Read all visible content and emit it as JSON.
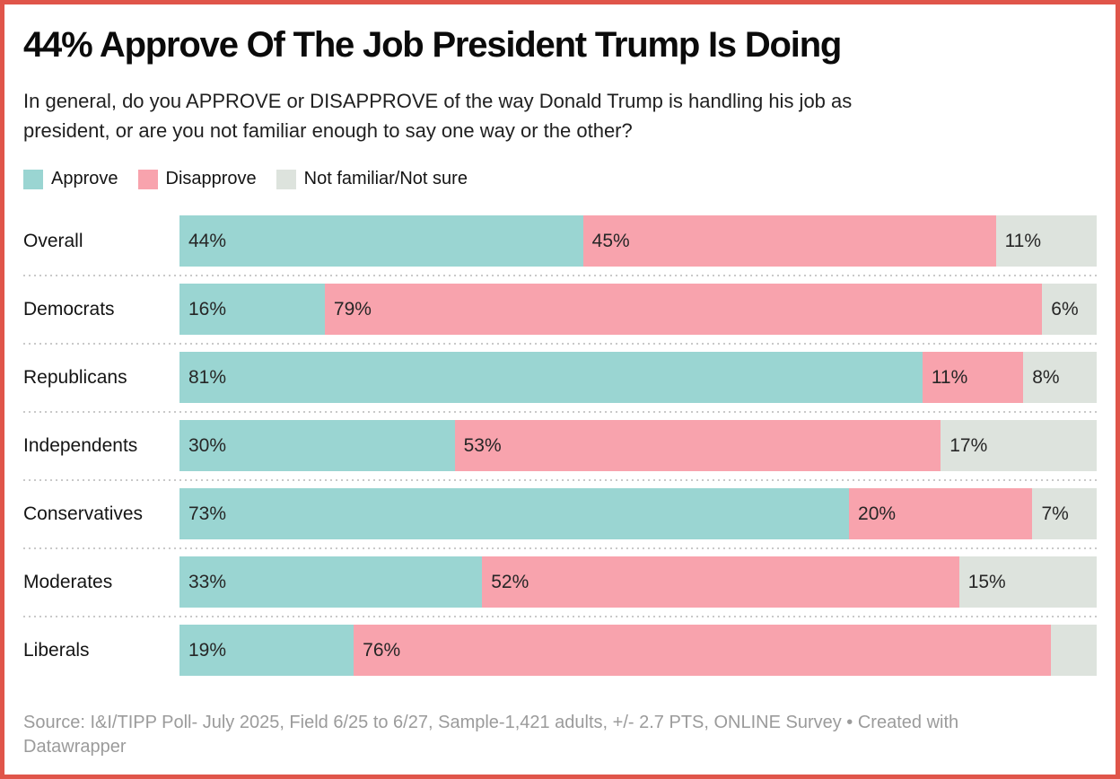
{
  "header": {
    "title": "44% Approve Of The Job President Trump Is Doing",
    "subtitle": "In general, do you APPROVE or DISAPPROVE of the way Donald Trump is handling his job as president, or are you not familiar enough to say one way or the other?"
  },
  "legend": {
    "items": [
      {
        "label": "Approve",
        "color": "#9ad5d2"
      },
      {
        "label": "Disapprove",
        "color": "#f8a3ad"
      },
      {
        "label": "Not familiar/Not sure",
        "color": "#dde3dd"
      }
    ]
  },
  "chart_data": {
    "type": "bar",
    "variant": "horizontal-stacked",
    "title": "44% Approve Of The Job President Trump Is Doing",
    "subtitle": "In general, do you APPROVE or DISAPPROVE of the way Donald Trump is handling his job as president, or are you not familiar enough to say one way or the other?",
    "legend_position": "top",
    "grid": false,
    "xlim": [
      0,
      100
    ],
    "unit": "%",
    "categories": [
      "Overall",
      "Democrats",
      "Republicans",
      "Independents",
      "Conservatives",
      "Moderates",
      "Liberals"
    ],
    "series": [
      {
        "name": "Approve",
        "color": "#9ad5d2",
        "values": [
          44,
          16,
          81,
          30,
          73,
          33,
          19
        ]
      },
      {
        "name": "Disapprove",
        "color": "#f8a3ad",
        "values": [
          45,
          79,
          11,
          53,
          20,
          52,
          76
        ]
      },
      {
        "name": "Not familiar/Not sure",
        "color": "#dde3dd",
        "values": [
          11,
          6,
          8,
          17,
          7,
          15,
          5
        ]
      }
    ],
    "segment_labels": [
      [
        "44%",
        "45%",
        "11%"
      ],
      [
        "16%",
        "79%",
        "6%"
      ],
      [
        "81%",
        "11%",
        "8%"
      ],
      [
        "30%",
        "53%",
        "17%"
      ],
      [
        "73%",
        "20%",
        "7%"
      ],
      [
        "33%",
        "52%",
        "15%"
      ],
      [
        "19%",
        "76%",
        ""
      ]
    ]
  },
  "footer": {
    "text": "Source: I&I/TIPP Poll- July 2025, Field 6/25 to 6/27, Sample-1,421 adults, +/- 2.7 PTS, ONLINE Survey • Created with Datawrapper"
  },
  "frame": {
    "border_color": "#e0554a",
    "background": "#ffffff",
    "separator_color": "#c9c9c9"
  }
}
